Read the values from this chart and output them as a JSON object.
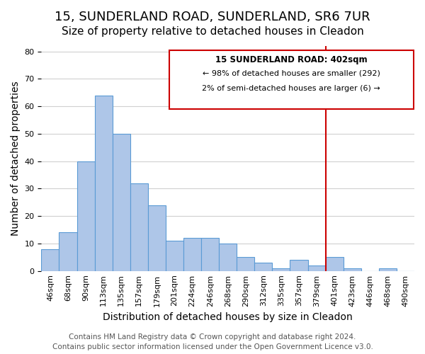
{
  "title": "15, SUNDERLAND ROAD, SUNDERLAND, SR6 7UR",
  "subtitle": "Size of property relative to detached houses in Cleadon",
  "xlabel": "Distribution of detached houses by size in Cleadon",
  "ylabel": "Number of detached properties",
  "footer_line1": "Contains HM Land Registry data © Crown copyright and database right 2024.",
  "footer_line2": "Contains public sector information licensed under the Open Government Licence v3.0.",
  "bin_labels": [
    "46sqm",
    "68sqm",
    "90sqm",
    "113sqm",
    "135sqm",
    "157sqm",
    "179sqm",
    "201sqm",
    "224sqm",
    "246sqm",
    "268sqm",
    "290sqm",
    "312sqm",
    "335sqm",
    "357sqm",
    "379sqm",
    "401sqm",
    "423sqm",
    "446sqm",
    "468sqm",
    "490sqm"
  ],
  "bar_heights": [
    8,
    14,
    40,
    64,
    50,
    32,
    24,
    11,
    12,
    12,
    10,
    5,
    3,
    1,
    4,
    2,
    5,
    1,
    0,
    1,
    0
  ],
  "bar_color": "#aec6e8",
  "bar_edge_color": "#5b9bd5",
  "grid_color": "#d0d0d0",
  "vline_x": 16,
  "vline_color": "#cc0000",
  "box_text_line1": "15 SUNDERLAND ROAD: 402sqm",
  "box_text_line2": "← 98% of detached houses are smaller (292)",
  "box_text_line3": "2% of semi-detached houses are larger (6) →",
  "box_edge_color": "#cc0000",
  "ylim": [
    0,
    82
  ],
  "yticks": [
    0,
    10,
    20,
    30,
    40,
    50,
    60,
    70,
    80
  ],
  "title_fontsize": 13,
  "subtitle_fontsize": 11,
  "axis_label_fontsize": 10,
  "tick_fontsize": 8,
  "footer_fontsize": 7.5
}
